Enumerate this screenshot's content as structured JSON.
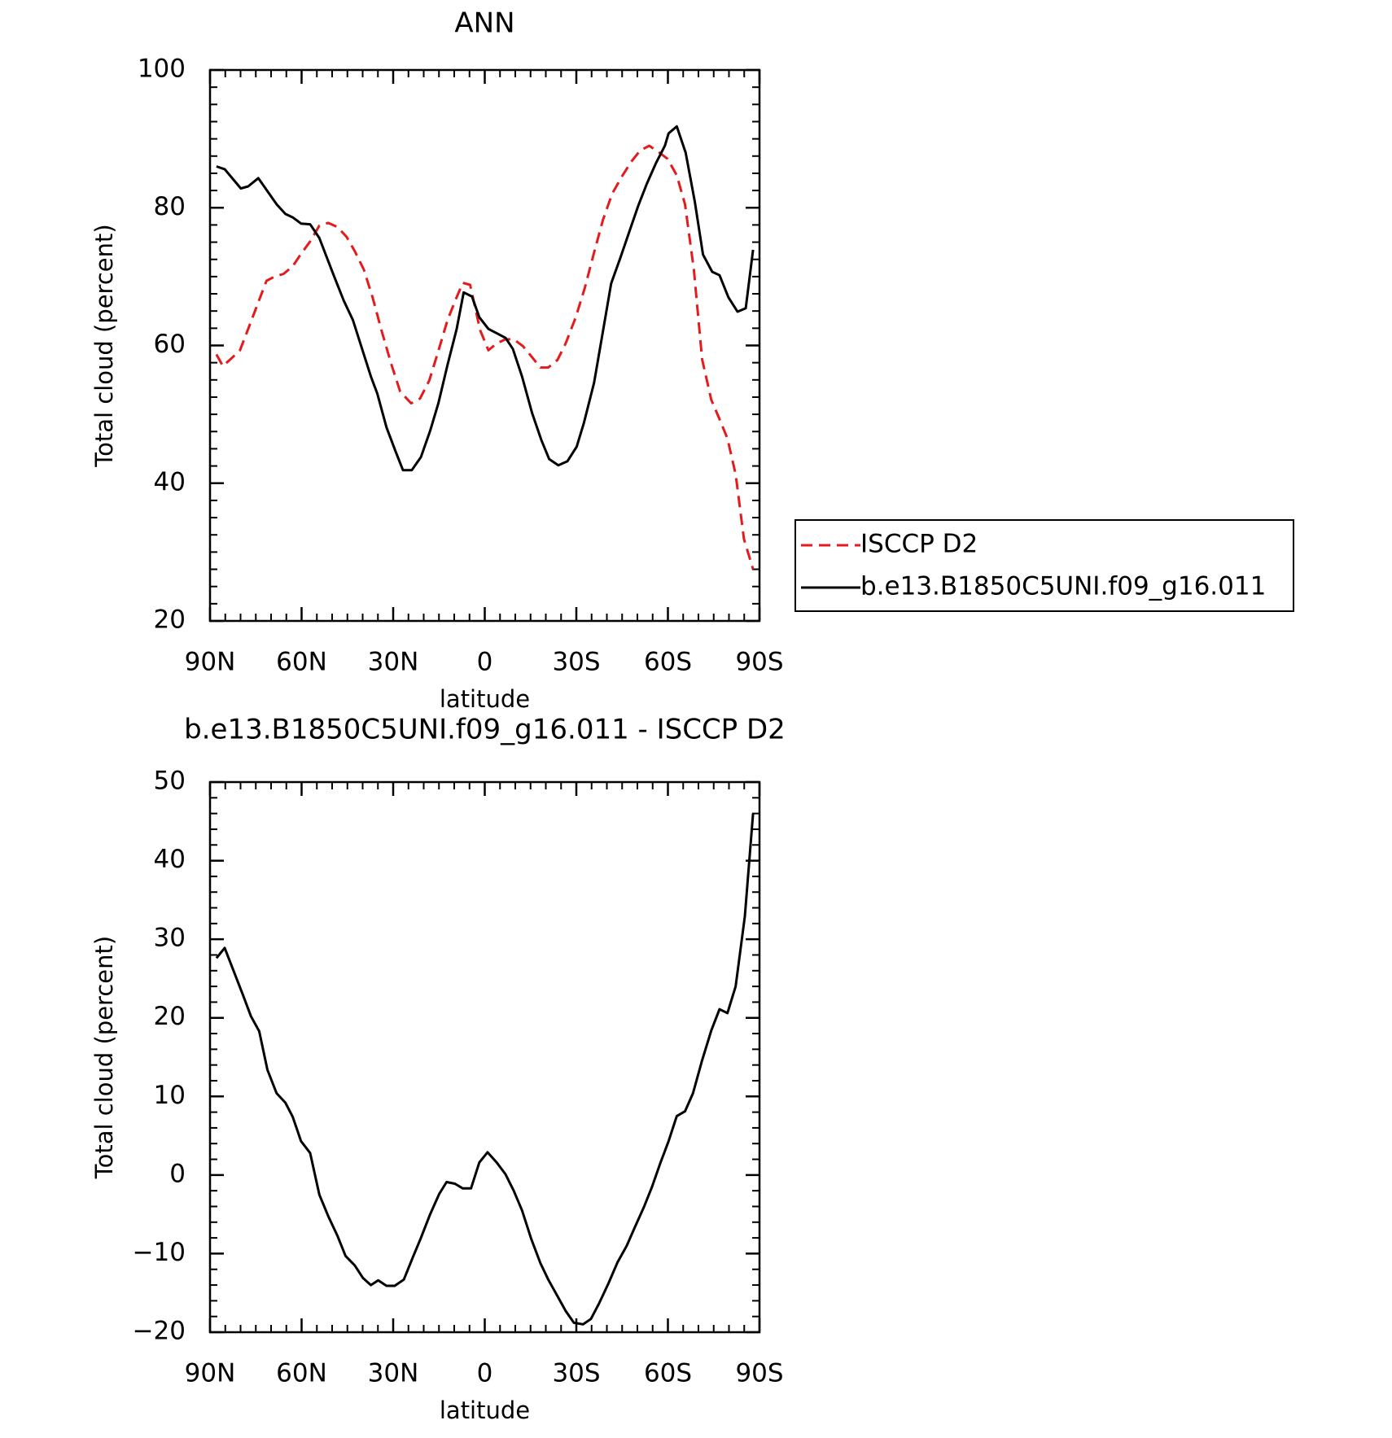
{
  "chart_data": [
    {
      "type": "line",
      "title": "ANN",
      "xlabel": "latitude",
      "ylabel": "Total cloud (percent)",
      "xlim": [
        90,
        -90
      ],
      "xticks": [
        {
          "value": 90,
          "label": "90N"
        },
        {
          "value": 60,
          "label": "60N"
        },
        {
          "value": 30,
          "label": "30N"
        },
        0,
        {
          "value": -30,
          "label": "30S"
        },
        {
          "value": -60,
          "label": "60S"
        },
        {
          "value": -90,
          "label": "90S"
        }
      ],
      "ylim": [
        20,
        100
      ],
      "yticks": [
        20,
        40,
        60,
        80,
        100
      ],
      "legend": "right",
      "series": [
        {
          "name": "ISCCP D2",
          "color": "#e41a1c",
          "linestyle": "dashed",
          "x": [
            87.9,
            85.8,
            82.8,
            80.2,
            77.5,
            74.5,
            71.5,
            68.8,
            65.9,
            62.9,
            60.2,
            57.2,
            54.2,
            51.3,
            48.3,
            45.3,
            42.6,
            39.6,
            36.7,
            33.7,
            30.7,
            27.7,
            24.1,
            21.2,
            18.2,
            15.2,
            12.2,
            9.5,
            7.2,
            4.8,
            1.5,
            -1.2,
            -3.9,
            -6.8,
            -9.5,
            -12.5,
            -15.5,
            -18.2,
            -20.8,
            -23.8,
            -26.5,
            -29.8,
            -32.8,
            -35.8,
            -38.7,
            -41.7,
            -45.0,
            -48.0,
            -50.9,
            -53.9,
            -56.9,
            -59.9,
            -62.9,
            -65.6,
            -68.5,
            -71.2,
            -74.2,
            -76.9,
            -79.5,
            -82.2,
            -84.9,
            -87.9
          ],
          "values": [
            58.7,
            57.0,
            58.2,
            59.3,
            62.4,
            65.9,
            69.4,
            70.0,
            70.4,
            71.5,
            73.3,
            75.1,
            77.4,
            77.8,
            77.2,
            75.8,
            73.7,
            71.0,
            66.9,
            62.0,
            57.4,
            53.3,
            51.6,
            52.3,
            54.9,
            59.2,
            63.7,
            66.7,
            69.1,
            68.8,
            62.2,
            59.3,
            60.3,
            60.9,
            60.9,
            59.9,
            58.3,
            56.8,
            56.8,
            57.9,
            60.3,
            64.1,
            68.4,
            73.5,
            78.2,
            82.0,
            84.6,
            86.7,
            88.3,
            89.0,
            88.1,
            87.1,
            84.7,
            80.5,
            71.0,
            58.0,
            52.1,
            49.3,
            46.5,
            41.3,
            31.9,
            27.5
          ]
        },
        {
          "name": "b.e13.B1850C5UNI.f09_g16.011",
          "color": "#000000",
          "linestyle": "solid",
          "x": [
            87.9,
            85.2,
            79.9,
            77.5,
            74.2,
            71.2,
            68.2,
            65.3,
            62.9,
            60.2,
            57.2,
            54.2,
            49.5,
            46.2,
            43.2,
            40.2,
            37.3,
            35.2,
            32.2,
            29.2,
            26.8,
            23.9,
            20.9,
            17.9,
            15.2,
            12.2,
            9.2,
            6.9,
            4.2,
            1.8,
            -1.2,
            -4.2,
            -6.8,
            -9.2,
            -12.2,
            -15.5,
            -18.5,
            -21.1,
            -24.1,
            -27.1,
            -30.1,
            -32.5,
            -35.8,
            -38.7,
            -41.4,
            -44.4,
            -47.4,
            -50.3,
            -53.0,
            -56.0,
            -59.0,
            -60.2,
            -62.9,
            -65.8,
            -68.8,
            -71.5,
            -74.5,
            -76.9,
            -79.8,
            -82.8,
            -85.5,
            -87.9
          ],
          "values": [
            86.0,
            85.6,
            82.8,
            83.1,
            84.3,
            82.4,
            80.5,
            79.1,
            78.6,
            77.7,
            77.6,
            75.6,
            70.2,
            66.5,
            63.7,
            59.5,
            55.5,
            53.0,
            48.1,
            44.6,
            41.9,
            41.9,
            43.8,
            47.6,
            51.6,
            57.2,
            62.4,
            67.7,
            67.1,
            64.1,
            62.4,
            61.7,
            61.1,
            59.5,
            55.5,
            50.2,
            46.3,
            43.5,
            42.6,
            43.2,
            45.3,
            48.8,
            54.6,
            62.0,
            69.0,
            72.7,
            76.6,
            80.3,
            83.4,
            86.4,
            89.0,
            90.8,
            91.8,
            88.0,
            80.9,
            73.2,
            70.7,
            70.2,
            67.0,
            64.9,
            65.4,
            73.9
          ]
        }
      ]
    },
    {
      "type": "line",
      "title": "b.e13.B1850C5UNI.f09_g16.011 - ISCCP D2",
      "xlabel": "latitude",
      "ylabel": "Total cloud (percent)",
      "xlim": [
        90,
        -90
      ],
      "xticks": [
        {
          "value": 90,
          "label": "90N"
        },
        {
          "value": 60,
          "label": "60N"
        },
        {
          "value": 30,
          "label": "30N"
        },
        0,
        {
          "value": -30,
          "label": "30S"
        },
        {
          "value": -60,
          "label": "60S"
        },
        {
          "value": -90,
          "label": "90S"
        }
      ],
      "ylim": [
        -20,
        50
      ],
      "yticks": [
        {
          "value": -20,
          "label": "−20"
        },
        {
          "value": -10,
          "label": "−10"
        },
        0,
        10,
        20,
        30,
        40,
        50
      ],
      "series": [
        {
          "color": "#000000",
          "linestyle": "solid",
          "x": [
            87.9,
            85.2,
            82.3,
            79.3,
            76.6,
            73.9,
            71.2,
            68.2,
            65.3,
            62.9,
            60.2,
            57.2,
            54.2,
            51.3,
            48.3,
            45.6,
            42.6,
            39.9,
            37.3,
            34.9,
            32.2,
            29.5,
            26.5,
            23.6,
            20.9,
            17.9,
            14.9,
            12.5,
            9.8,
            7.2,
            4.5,
            1.8,
            -0.9,
            -3.9,
            -6.8,
            -9.5,
            -12.2,
            -15.2,
            -18.2,
            -20.8,
            -23.8,
            -26.5,
            -29.2,
            -32.2,
            -34.8,
            -37.5,
            -40.5,
            -43.5,
            -46.5,
            -49.1,
            -52.1,
            -54.8,
            -57.5,
            -60.2,
            -62.9,
            -65.6,
            -68.2,
            -71.2,
            -74.2,
            -76.9,
            -79.5,
            -82.2,
            -85.2,
            -87.9
          ],
          "values": [
            27.6,
            28.9,
            26.0,
            23.0,
            20.2,
            18.3,
            13.4,
            10.4,
            9.2,
            7.4,
            4.3,
            2.8,
            -2.5,
            -5.2,
            -7.7,
            -10.3,
            -11.5,
            -13.1,
            -14.0,
            -13.4,
            -14.1,
            -14.1,
            -13.3,
            -10.5,
            -8.0,
            -5.0,
            -2.4,
            -0.9,
            -1.1,
            -1.7,
            -1.7,
            1.6,
            2.9,
            1.6,
            0.1,
            -2.0,
            -4.5,
            -8.1,
            -11.2,
            -13.3,
            -15.4,
            -17.3,
            -18.8,
            -19.0,
            -18.3,
            -16.3,
            -13.8,
            -11.1,
            -9.0,
            -6.7,
            -4.1,
            -1.5,
            1.5,
            4.3,
            7.5,
            8.1,
            10.4,
            14.6,
            18.4,
            21.1,
            20.6,
            24.0,
            32.9,
            46.0
          ]
        }
      ]
    }
  ]
}
